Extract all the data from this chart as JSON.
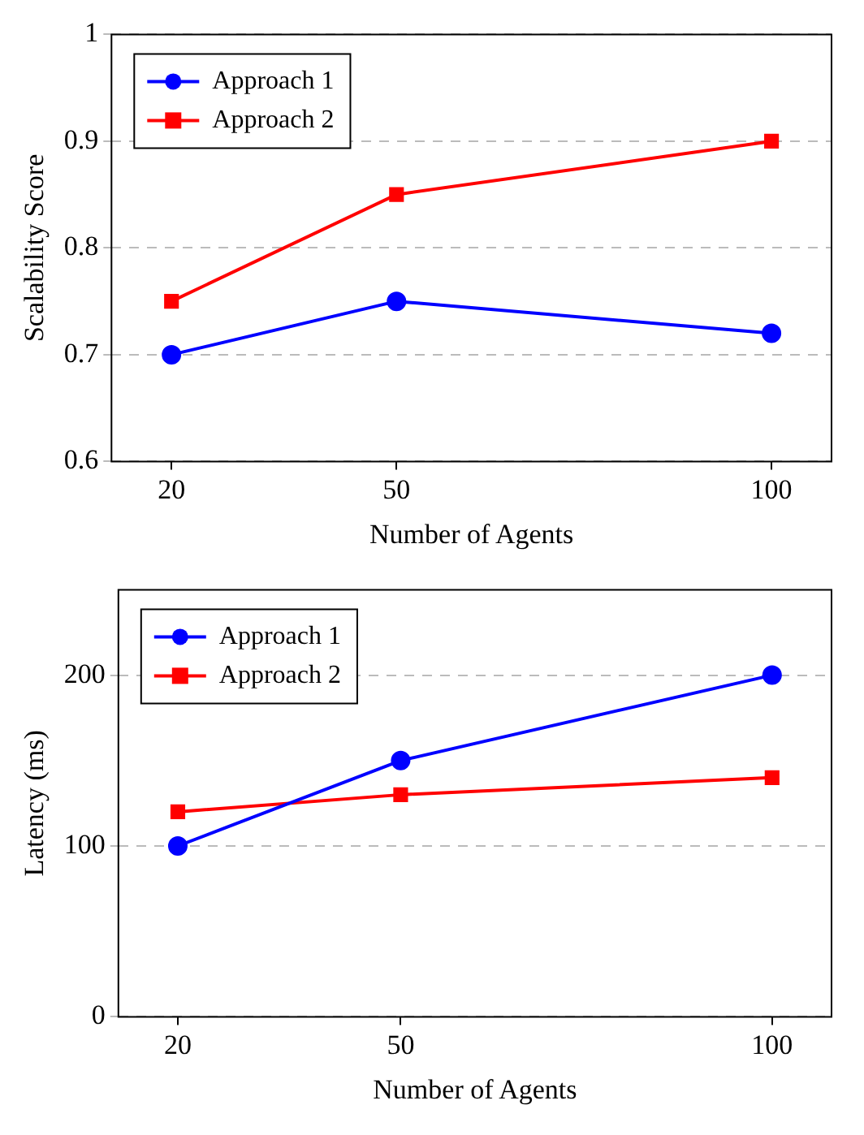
{
  "chart_data": [
    {
      "type": "line",
      "xlabel": "Number of Agents",
      "ylabel": "Scalability Score",
      "x": [
        20,
        50,
        100
      ],
      "xlim": [
        12,
        108
      ],
      "xticks": [
        20,
        50,
        100
      ],
      "ylim": [
        0.6,
        1
      ],
      "yticks": [
        0.6,
        0.7,
        0.8,
        0.9,
        1
      ],
      "grid": "y",
      "legend": "top left",
      "series": [
        {
          "name": "Approach 1",
          "color": "#0000ff",
          "marker": "circle",
          "values": [
            0.7,
            0.75,
            0.72
          ]
        },
        {
          "name": "Approach 2",
          "color": "#ff0000",
          "marker": "square",
          "values": [
            0.75,
            0.85,
            0.9
          ]
        }
      ]
    },
    {
      "type": "line",
      "xlabel": "Number of Agents",
      "ylabel": "Latency (ms)",
      "x": [
        20,
        50,
        100
      ],
      "xlim": [
        12,
        108
      ],
      "xticks": [
        20,
        50,
        100
      ],
      "ylim": [
        0,
        250
      ],
      "yticks": [
        0,
        100,
        200
      ],
      "grid": "y",
      "legend": "top left",
      "series": [
        {
          "name": "Approach 1",
          "color": "#0000ff",
          "marker": "circle",
          "values": [
            100,
            150,
            200
          ]
        },
        {
          "name": "Approach 2",
          "color": "#ff0000",
          "marker": "square",
          "values": [
            120,
            130,
            140
          ]
        }
      ]
    }
  ]
}
